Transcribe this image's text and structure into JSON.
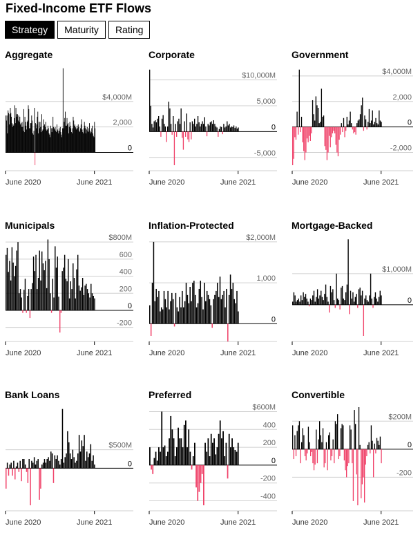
{
  "header": {
    "title": "Fixed-Income ETF Flows"
  },
  "tabs": [
    {
      "label": "Strategy",
      "active": true
    },
    {
      "label": "Maturity",
      "active": false
    },
    {
      "label": "Rating",
      "active": false
    }
  ],
  "colors": {
    "positive": "#000000",
    "negative": "#f0436a",
    "gridline": "#cfcfcf",
    "axis_text": "#666666"
  },
  "chart_data": [
    {
      "type": "bar",
      "title": "Aggregate",
      "unit": "M",
      "ylim": [
        -1000,
        6700
      ],
      "yticks": [
        {
          "value": 4000,
          "label": "$4,000M"
        },
        {
          "value": 2000,
          "label": "2,000"
        },
        {
          "value": 0,
          "label": "0"
        }
      ],
      "xticks": [
        {
          "index": 0,
          "label": "June 2020"
        },
        {
          "index": 20,
          "label": "June 2021"
        }
      ],
      "values": [
        2900,
        2500,
        2900,
        1500,
        3300,
        3100,
        2200,
        3000,
        3500,
        3100,
        2800,
        2300,
        2000,
        2200,
        2100,
        2700,
        3700,
        2300,
        3500,
        3000,
        2800,
        3000,
        2500,
        2900,
        2400,
        2800,
        2200,
        2300,
        2000,
        2400,
        2000,
        1700,
        3400,
        1600,
        2800,
        2400,
        2100,
        1800,
        2400,
        2500,
        3700,
        3400,
        1900,
        1900,
        2300,
        2300,
        2900,
        2500,
        1500,
        1400,
        1700,
        3500,
        -1000,
        2300,
        1900,
        2200,
        2800,
        3200,
        1500,
        2400,
        1900,
        2400,
        2000,
        1600,
        3000,
        1700,
        1800,
        2600,
        2100,
        2200,
        2000,
        2400,
        1800,
        1700,
        1800,
        2100,
        1900,
        1500,
        1400,
        1200,
        2100,
        1900,
        1600,
        1900,
        2800,
        2000,
        1900,
        1800,
        2000,
        1700,
        1600,
        2200,
        1800,
        1700,
        1500,
        1900,
        1700,
        2000,
        1600,
        1400,
        1200,
        1900,
        6600,
        1900,
        2400,
        2700,
        3200,
        2100,
        2100,
        2700,
        2200,
        2300,
        1500,
        2000,
        2400,
        2100,
        1900,
        1600,
        1500,
        1900,
        2800,
        2500,
        2100,
        2200,
        2000,
        1900,
        1800,
        2100,
        1900,
        2200,
        2000,
        1700,
        1600,
        1900,
        2200,
        2600,
        1800,
        1600,
        1500,
        1900,
        2400,
        2100,
        1900,
        1500,
        1800,
        2000,
        1700,
        1600,
        1900,
        2300,
        1700,
        1500,
        1600,
        1900,
        2100,
        1500,
        1300,
        1200,
        2400,
        1900
      ]
    },
    {
      "type": "bar",
      "title": "Corporate",
      "unit": "M",
      "ylim": [
        -6500,
        12500
      ],
      "yticks": [
        {
          "value": 10000,
          "label": "$10,000M"
        },
        {
          "value": 5000,
          "label": "5,000"
        },
        {
          "value": 0,
          "label": "0"
        },
        {
          "value": -5000,
          "label": "-5,000"
        }
      ],
      "xticks": [
        {
          "index": 0,
          "label": "June 2020"
        },
        {
          "index": 20,
          "label": "June 2021"
        }
      ],
      "values": [
        12000,
        5000,
        1500,
        800,
        2000,
        2200,
        1800,
        2500,
        3000,
        1000,
        -1000,
        2500,
        3200,
        1500,
        1000,
        -2000,
        1000,
        5800,
        4500,
        1500,
        -600,
        3000,
        -6500,
        1500,
        -1000,
        2000,
        2500,
        1500,
        4500,
        -1200,
        -3500,
        2000,
        -1000,
        3500,
        -1500,
        -2000,
        1800,
        -1500,
        2000,
        1500,
        2500,
        1000,
        1500,
        3000,
        1800,
        1000,
        1500,
        2000,
        1500,
        2800,
        1000,
        -900,
        1500,
        1200,
        1800,
        2000,
        1500,
        2200,
        1500,
        1000,
        800,
        -1000,
        500,
        1000,
        900,
        -500,
        1500,
        800,
        1000,
        2000,
        1200,
        1500,
        800,
        1000,
        900,
        1200,
        700,
        1000,
        600,
        800
      ]
    },
    {
      "type": "bar",
      "title": "Government",
      "unit": "M",
      "ylim": [
        -3000,
        4700
      ],
      "yticks": [
        {
          "value": 4000,
          "label": "$4,000M"
        },
        {
          "value": 2000,
          "label": "2,000"
        },
        {
          "value": 0,
          "label": "0"
        },
        {
          "value": -2000,
          "label": "-2,000"
        }
      ],
      "xticks": [
        {
          "index": 0,
          "label": "June 2020"
        },
        {
          "index": 20,
          "label": "June 2021"
        }
      ],
      "values": [
        -3000,
        -2500,
        -800,
        -1000,
        1200,
        -600,
        4500,
        -400,
        800,
        -1200,
        -1900,
        -2600,
        -2000,
        -900,
        -1200,
        -700,
        -1100,
        -500,
        2100,
        1000,
        500,
        2400,
        1700,
        1500,
        300,
        400,
        3000,
        800,
        900,
        -1500,
        -1800,
        -2600,
        -2000,
        -700,
        -1600,
        -800,
        -500,
        -300,
        -500,
        -1400,
        -2000,
        -2300,
        -1000,
        -600,
        300,
        -400,
        700,
        -800,
        -300,
        800,
        200,
        500,
        1200,
        300,
        -200,
        -500,
        -400,
        -600,
        300,
        500,
        600,
        1000,
        1700,
        2300,
        -300,
        900,
        600,
        -200,
        400,
        1400,
        300,
        500,
        1300,
        200,
        400,
        700,
        300,
        200,
        1300,
        500,
        400
      ]
    },
    {
      "type": "bar",
      "title": "Municipals",
      "unit": "M",
      "ylim": [
        -300,
        850
      ],
      "yticks": [
        {
          "value": 800,
          "label": "$800M"
        },
        {
          "value": 600,
          "label": "600"
        },
        {
          "value": 400,
          "label": "400"
        },
        {
          "value": 200,
          "label": "200"
        },
        {
          "value": 0,
          "label": "0"
        },
        {
          "value": -200,
          "label": "-200"
        }
      ],
      "xticks": [
        {
          "index": 0,
          "label": "June 2020"
        },
        {
          "index": 20,
          "label": "June 2021"
        }
      ],
      "values": [
        650,
        730,
        450,
        580,
        350,
        740,
        560,
        400,
        520,
        700,
        800,
        200,
        250,
        150,
        -30,
        240,
        370,
        -30,
        170,
        250,
        -90,
        250,
        320,
        630,
        460,
        650,
        250,
        380,
        700,
        350,
        690,
        550,
        470,
        580,
        260,
        830,
        600,
        200,
        -30,
        370,
        150,
        750,
        500,
        630,
        160,
        -260,
        -30,
        460,
        500,
        650,
        370,
        340,
        600,
        140,
        340,
        250,
        550,
        380,
        140,
        480,
        650,
        290,
        230,
        270,
        380,
        180,
        290,
        310,
        250,
        200,
        150,
        310,
        200,
        170,
        140
      ]
    },
    {
      "type": "bar",
      "title": "Inflation-Protected",
      "unit": "M",
      "ylim": [
        -300,
        2100
      ],
      "yticks": [
        {
          "value": 2000,
          "label": "$2,000M"
        },
        {
          "value": 1000,
          "label": "1,000"
        },
        {
          "value": 0,
          "label": "0"
        }
      ],
      "xticks": [
        {
          "index": 0,
          "label": "June 2020"
        },
        {
          "index": 20,
          "label": "June 2021"
        }
      ],
      "values": [
        450,
        -300,
        1000,
        2000,
        550,
        850,
        650,
        800,
        300,
        400,
        350,
        800,
        600,
        400,
        800,
        350,
        550,
        750,
        600,
        -70,
        750,
        400,
        300,
        650,
        400,
        800,
        400,
        550,
        1000,
        700,
        500,
        900,
        550,
        1000,
        1050,
        700,
        400,
        500,
        850,
        1050,
        650,
        350,
        1000,
        550,
        800,
        700,
        600,
        450,
        -100,
        600,
        700,
        800,
        1000,
        650,
        1150,
        600,
        700,
        800,
        400,
        850,
        -450,
        700,
        1200,
        850,
        1000,
        600,
        500,
        800,
        300
      ]
    },
    {
      "type": "bar",
      "title": "Mortgage-Backed",
      "unit": "M",
      "ylim": [
        -1000,
        2150
      ],
      "yticks": [
        {
          "value": 1000,
          "label": "$1,000M"
        },
        {
          "value": 0,
          "label": "0"
        }
      ],
      "xticks": [
        {
          "index": 0,
          "label": "June 2020"
        },
        {
          "index": 20,
          "label": "June 2021"
        }
      ],
      "values": [
        100,
        400,
        300,
        100,
        150,
        200,
        100,
        300,
        150,
        400,
        250,
        350,
        200,
        100,
        -50,
        200,
        150,
        300,
        450,
        100,
        250,
        500,
        200,
        300,
        450,
        250,
        150,
        350,
        650,
        250,
        100,
        -250,
        600,
        400,
        500,
        150,
        -100,
        1000,
        200,
        150,
        -150,
        550,
        600,
        200,
        150,
        400,
        650,
        2100,
        -300,
        450,
        200,
        400,
        100,
        250,
        350,
        -100,
        500,
        550,
        300,
        450,
        -1000,
        200,
        300,
        150,
        100,
        300,
        1000,
        200,
        -100,
        250,
        400,
        200,
        100,
        250,
        450,
        300
      ]
    },
    {
      "type": "bar",
      "title": "Bank Loans",
      "unit": "M",
      "ylim": [
        -1000,
        1650
      ],
      "yticks": [
        {
          "value": 500,
          "label": "$500M"
        },
        {
          "value": 0,
          "label": "0"
        }
      ],
      "xticks": [
        {
          "index": 0,
          "label": "June 2020"
        },
        {
          "index": 20,
          "label": "June 2021"
        }
      ],
      "values": [
        -550,
        150,
        -200,
        100,
        150,
        -200,
        200,
        -300,
        50,
        150,
        -100,
        200,
        -350,
        250,
        250,
        100,
        -100,
        -400,
        250,
        -1000,
        200,
        150,
        300,
        100,
        200,
        250,
        -850,
        -550,
        100,
        150,
        250,
        150,
        250,
        300,
        200,
        450,
        400,
        -400,
        350,
        250,
        350,
        200,
        100,
        250,
        1600,
        150,
        300,
        400,
        1000,
        700,
        400,
        250,
        500,
        300,
        150,
        200,
        400,
        900,
        450,
        750,
        600,
        900,
        200,
        450,
        300,
        400,
        650,
        200,
        350,
        100
      ]
    },
    {
      "type": "bar",
      "title": "Preferred",
      "unit": "M",
      "ylim": [
        -450,
        650
      ],
      "yticks": [
        {
          "value": 600,
          "label": "$600M"
        },
        {
          "value": 400,
          "label": "400"
        },
        {
          "value": 200,
          "label": "200"
        },
        {
          "value": 0,
          "label": "0"
        },
        {
          "value": -200,
          "label": "-200"
        },
        {
          "value": -400,
          "label": "-400"
        }
      ],
      "xticks": [
        {
          "index": 0,
          "label": "June 2020"
        },
        {
          "index": 20,
          "label": "June 2021"
        }
      ],
      "values": [
        200,
        -50,
        -100,
        80,
        150,
        50,
        200,
        150,
        600,
        200,
        220,
        100,
        150,
        300,
        550,
        400,
        300,
        100,
        200,
        420,
        300,
        300,
        200,
        450,
        500,
        200,
        400,
        150,
        -50,
        100,
        250,
        -250,
        -400,
        -300,
        -200,
        -100,
        -450,
        250,
        150,
        300,
        100,
        350,
        250,
        300,
        120,
        200,
        350,
        500,
        300,
        380,
        100,
        250,
        -150,
        350,
        200,
        300,
        200,
        170,
        150,
        250
      ]
    },
    {
      "type": "bar",
      "title": "Convertible",
      "unit": "M",
      "ylim": [
        -400,
        300
      ],
      "yticks": [
        {
          "value": 200,
          "label": "$200M"
        },
        {
          "value": 0,
          "label": "0"
        },
        {
          "value": -200,
          "label": "-200"
        }
      ],
      "xticks": [
        {
          "index": 0,
          "label": "June 2020"
        },
        {
          "index": 20,
          "label": "June 2021"
        }
      ],
      "values": [
        170,
        -70,
        100,
        -50,
        130,
        170,
        200,
        -100,
        50,
        150,
        100,
        -50,
        -80,
        -30,
        160,
        50,
        -50,
        -20,
        -100,
        -150,
        -110,
        140,
        -100,
        70,
        200,
        100,
        50,
        150,
        -130,
        -100,
        50,
        -150,
        100,
        120,
        -80,
        -50,
        70,
        -100,
        200,
        180,
        250,
        -70,
        -50,
        150,
        180,
        170,
        -80,
        -150,
        -200,
        -120,
        -100,
        170,
        140,
        -100,
        -370,
        280,
        180,
        -180,
        -400,
        300,
        30,
        -350,
        -250,
        -200,
        -380,
        -110,
        -50,
        30,
        50,
        -30,
        170,
        60,
        -200,
        40,
        -30,
        80,
        60,
        30,
        90,
        -100
      ]
    }
  ]
}
